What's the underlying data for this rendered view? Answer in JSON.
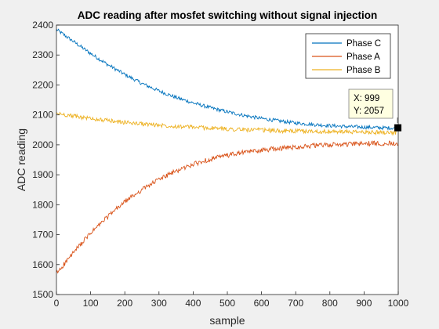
{
  "chart_data": {
    "type": "line",
    "title": "ADC reading after mosfet switching without signal injection",
    "xlabel": "sample",
    "ylabel": "ADC reading",
    "xlim": [
      0,
      1000
    ],
    "ylim": [
      1500,
      2400
    ],
    "xticks": [
      0,
      100,
      200,
      300,
      400,
      500,
      600,
      700,
      800,
      900,
      1000
    ],
    "yticks": [
      1500,
      1600,
      1700,
      1800,
      1900,
      2000,
      2100,
      2200,
      2300,
      2400
    ],
    "grid": false,
    "legend_position": "top-right",
    "x": [
      0,
      50,
      100,
      150,
      200,
      250,
      300,
      350,
      400,
      450,
      500,
      550,
      600,
      650,
      700,
      750,
      800,
      850,
      900,
      950,
      1000
    ],
    "series": [
      {
        "name": "Phase C",
        "color": "#0072bd",
        "noise": 6,
        "values": [
          2385,
          2345,
          2305,
          2268,
          2235,
          2205,
          2180,
          2158,
          2140,
          2124,
          2110,
          2098,
          2088,
          2080,
          2073,
          2068,
          2064,
          2061,
          2059,
          2057,
          2056
        ]
      },
      {
        "name": "Phase A",
        "color": "#d95319",
        "noise": 8,
        "values": [
          1570,
          1640,
          1705,
          1760,
          1810,
          1850,
          1885,
          1912,
          1935,
          1952,
          1965,
          1975,
          1982,
          1988,
          1993,
          1997,
          2000,
          2002,
          2004,
          2005,
          2006
        ]
      },
      {
        "name": "Phase B",
        "color": "#edb120",
        "noise": 7,
        "values": [
          2105,
          2096,
          2088,
          2081,
          2075,
          2070,
          2066,
          2062,
          2059,
          2056,
          2053,
          2051,
          2049,
          2047,
          2046,
          2045,
          2044,
          2043,
          2042,
          2042,
          2041
        ]
      }
    ],
    "datatip": {
      "x_label": "X: 999",
      "y_label": "Y: 2057",
      "x": 999,
      "y": 2057
    }
  }
}
